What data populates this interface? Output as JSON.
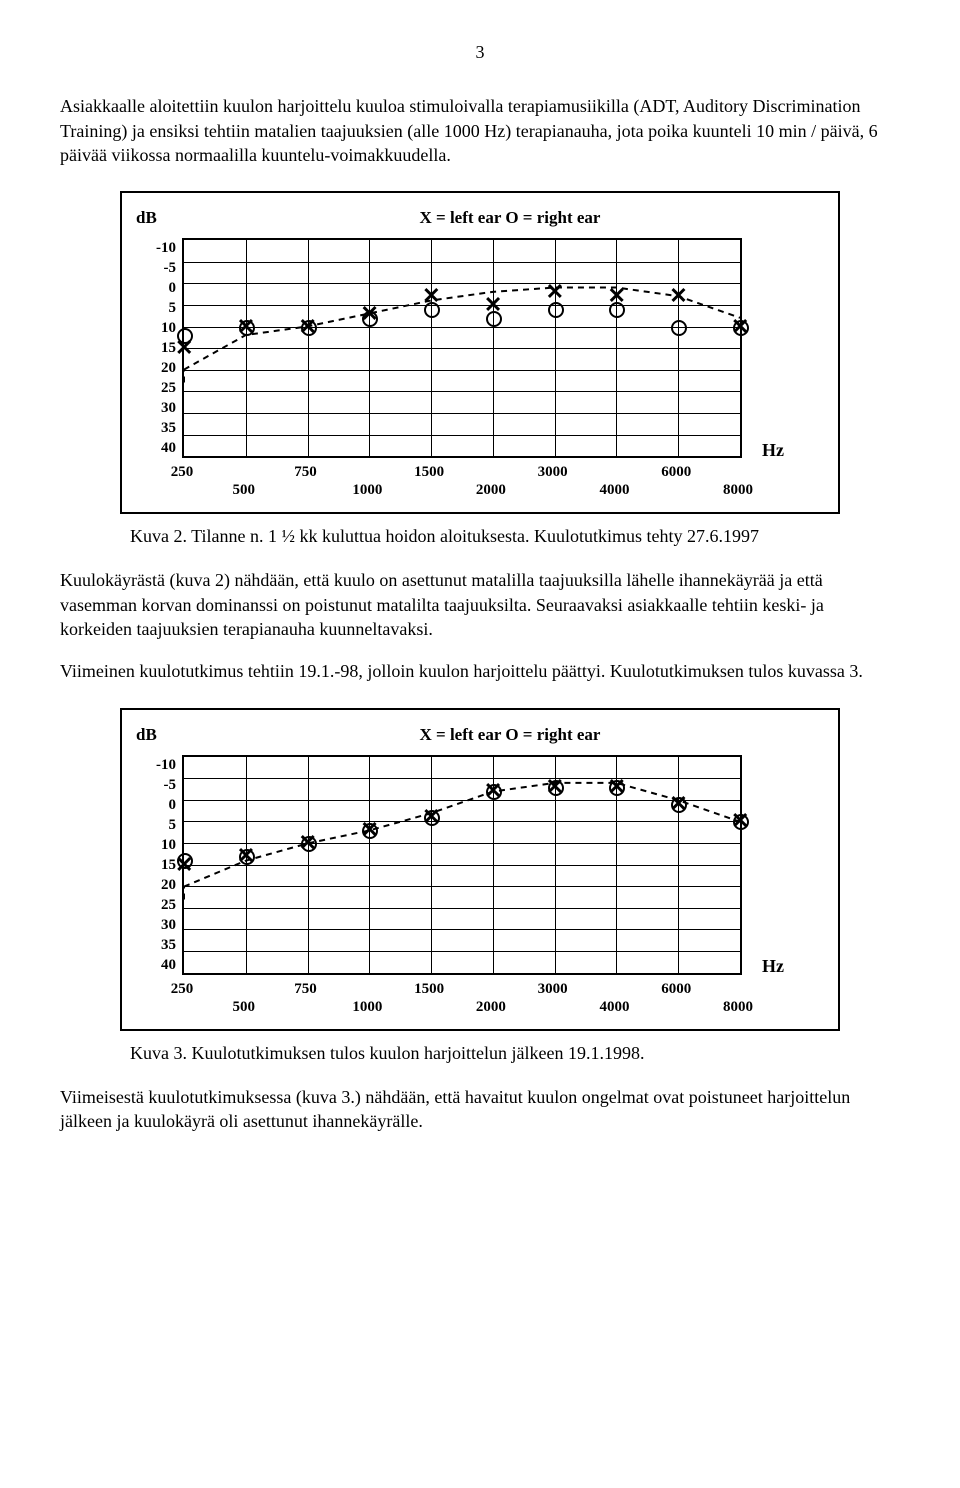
{
  "page_number": "3",
  "para1": "Asiakkaalle aloitettiin kuulon harjoittelu kuuloa stimuloivalla terapiamusiikilla (ADT, Auditory Discrimination Training) ja ensiksi tehtiin matalien taajuuksien (alle 1000 Hz) terapianauha, jota poika kuunteli 10 min / päivä, 6 päivää viikossa normaalilla kuuntelu-voimakkuudella.",
  "chart2": {
    "db_label": "dB",
    "legend": "X = left ear      O = right ear",
    "hz_label": "Hz",
    "ylim": [
      -10,
      40
    ],
    "y_ticks": [
      "-10",
      "-5",
      "0",
      "5",
      "10",
      "15",
      "20",
      "25",
      "30",
      "35",
      "40"
    ],
    "x_freqs": [
      250,
      500,
      750,
      1000,
      1500,
      2000,
      3000,
      4000,
      6000,
      8000
    ],
    "x_row1": [
      "250",
      "750",
      "1500",
      "3000",
      "6000"
    ],
    "x_row2": [
      "500",
      "1000",
      "2000",
      "4000",
      "8000"
    ],
    "left_ear": {
      "250": 15,
      "500": 10,
      "750": 10,
      "1000": 7,
      "1500": 3,
      "2000": 5,
      "3000": 2,
      "4000": 3,
      "6000": 3,
      "8000": 10
    },
    "right_ear": {
      "250": 12,
      "500": 10,
      "750": 10,
      "1000": 8,
      "1500": 6,
      "2000": 8,
      "3000": 6,
      "4000": 6,
      "6000": 10,
      "8000": 10
    },
    "curve": [
      [
        250,
        20
      ],
      [
        500,
        12
      ],
      [
        750,
        10
      ],
      [
        1000,
        7
      ],
      [
        1500,
        4
      ],
      [
        2000,
        2
      ],
      [
        3000,
        1
      ],
      [
        4000,
        1
      ],
      [
        6000,
        3
      ],
      [
        8000,
        8
      ]
    ],
    "grid_color": "#000"
  },
  "caption2": "Kuva 2. Tilanne n. 1 ½  kk kuluttua hoidon aloituksesta. Kuulotutkimus tehty 27.6.1997",
  "para2": "Kuulokäyrästä (kuva 2) nähdään, että kuulo on asettunut matalilla taajuuksilla lähelle ihannekäyrää ja että vasemman korvan dominanssi on poistunut matalilta taajuuksilta. Seuraavaksi asiakkaalle tehtiin keski- ja korkeiden taajuuksien terapianauha kuunneltavaksi.",
  "para3": "Viimeinen kuulotutkimus tehtiin 19.1.-98, jolloin kuulon harjoittelu päättyi. Kuulotutkimuksen tulos kuvassa 3.",
  "chart3": {
    "db_label": "dB",
    "legend": "X = left ear     O = right ear",
    "hz_label": "Hz",
    "ylim": [
      -10,
      40
    ],
    "y_ticks": [
      "-10",
      "-5",
      "0",
      "5",
      "10",
      "15",
      "20",
      "25",
      "30",
      "35",
      "40"
    ],
    "x_freqs": [
      250,
      500,
      750,
      1000,
      1500,
      2000,
      3000,
      4000,
      6000,
      8000
    ],
    "x_row1": [
      "250",
      "750",
      "1500",
      "3000",
      "6000"
    ],
    "x_row2": [
      "500",
      "1000",
      "2000",
      "4000",
      "8000"
    ],
    "left_ear": {
      "250": 15,
      "500": 13,
      "750": 10,
      "1000": 7,
      "1500": 4,
      "2000": -2,
      "3000": -3,
      "4000": -3,
      "6000": 1,
      "8000": 5
    },
    "right_ear": {
      "250": 14,
      "500": 13,
      "750": 10,
      "1000": 7,
      "1500": 4,
      "2000": -2,
      "3000": -3,
      "4000": -3,
      "6000": 1,
      "8000": 5
    },
    "curve": [
      [
        250,
        20
      ],
      [
        500,
        14
      ],
      [
        750,
        10
      ],
      [
        1000,
        7
      ],
      [
        1500,
        3
      ],
      [
        2000,
        -2
      ],
      [
        3000,
        -4
      ],
      [
        4000,
        -4
      ],
      [
        6000,
        0
      ],
      [
        8000,
        5
      ]
    ],
    "grid_color": "#000"
  },
  "caption3": "Kuva 3. Kuulotutkimuksen tulos kuulon harjoittelun jälkeen 19.1.1998.",
  "para4": "Viimeisestä kuulotutkimuksessa (kuva 3.) nähdään, että havaitut kuulon ongelmat ovat poistuneet harjoittelun jälkeen ja kuulokäyrä oli asettunut ihannekäyrälle."
}
